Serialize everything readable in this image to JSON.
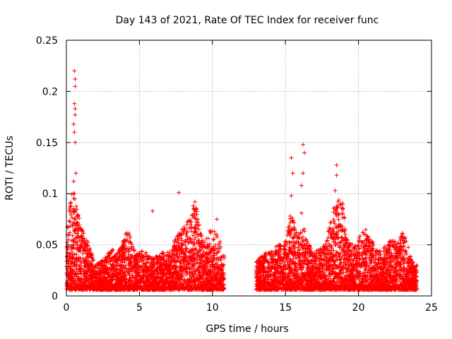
{
  "chart_data": {
    "type": "scatter",
    "title": "Day 143 of 2021, Rate Of TEC Index for receiver func",
    "xlabel": "GPS time / hours",
    "ylabel": "ROTI / TECUs",
    "xlim": [
      0,
      25
    ],
    "ylim": [
      0,
      0.25
    ],
    "xticks": [
      "0",
      "5",
      "10",
      "15",
      "20",
      "25"
    ],
    "yticks": [
      "0",
      "0.05",
      "0.1",
      "0.15",
      "0.2",
      "0.25"
    ],
    "grid": true,
    "marker": "+",
    "color": "#ff0000",
    "data_gap_hours": [
      10.8,
      13.0
    ],
    "notable_points": [
      {
        "x": 0.55,
        "y": 0.22
      },
      {
        "x": 0.6,
        "y": 0.212
      },
      {
        "x": 0.6,
        "y": 0.205
      },
      {
        "x": 0.55,
        "y": 0.188
      },
      {
        "x": 0.6,
        "y": 0.183
      },
      {
        "x": 0.6,
        "y": 0.177
      },
      {
        "x": 0.5,
        "y": 0.168
      },
      {
        "x": 0.55,
        "y": 0.16
      },
      {
        "x": 0.6,
        "y": 0.15
      },
      {
        "x": 0.65,
        "y": 0.12
      },
      {
        "x": 0.5,
        "y": 0.112
      },
      {
        "x": 0.55,
        "y": 0.1
      },
      {
        "x": 7.7,
        "y": 0.101
      },
      {
        "x": 5.9,
        "y": 0.083
      },
      {
        "x": 8.8,
        "y": 0.092
      },
      {
        "x": 10.3,
        "y": 0.075
      },
      {
        "x": 15.4,
        "y": 0.135
      },
      {
        "x": 15.5,
        "y": 0.12
      },
      {
        "x": 15.4,
        "y": 0.098
      },
      {
        "x": 16.2,
        "y": 0.148
      },
      {
        "x": 16.3,
        "y": 0.14
      },
      {
        "x": 16.2,
        "y": 0.12
      },
      {
        "x": 16.1,
        "y": 0.108
      },
      {
        "x": 16.1,
        "y": 0.081
      },
      {
        "x": 18.5,
        "y": 0.128
      },
      {
        "x": 18.5,
        "y": 0.118
      },
      {
        "x": 18.4,
        "y": 0.103
      },
      {
        "x": 18.3,
        "y": 0.082
      }
    ]
  }
}
